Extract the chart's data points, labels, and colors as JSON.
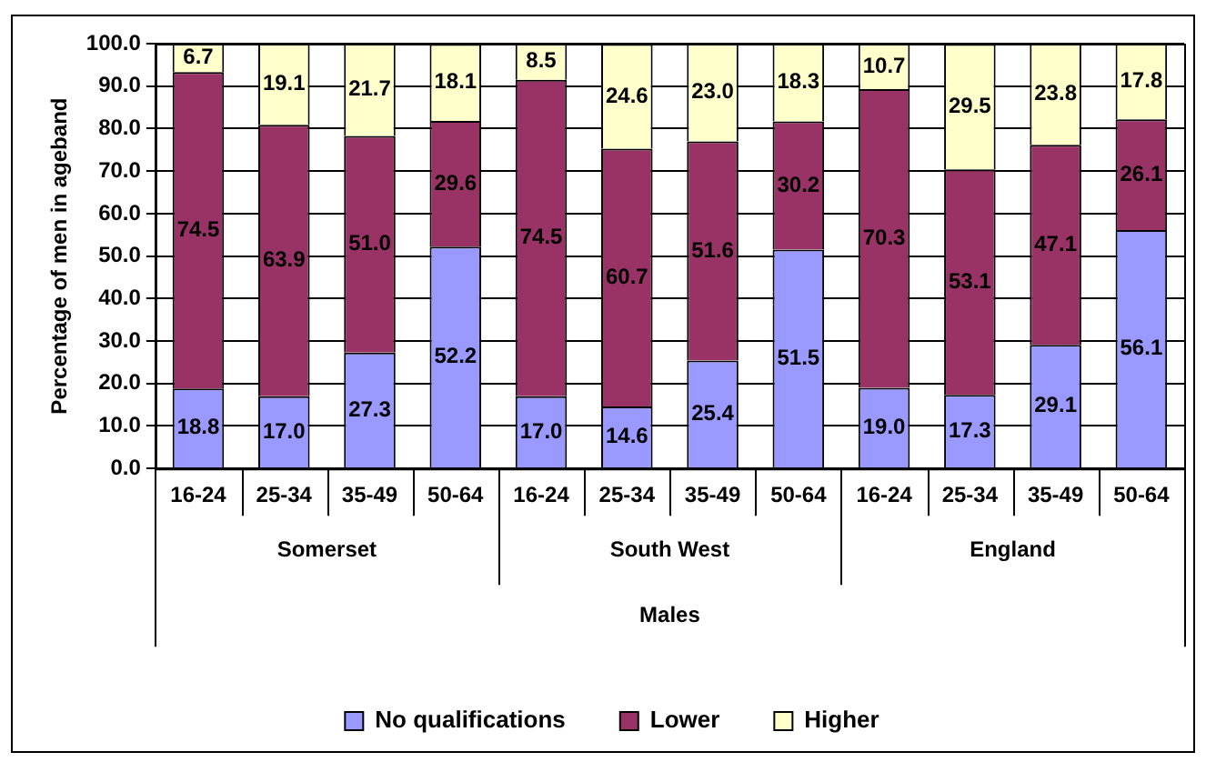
{
  "chart_data": {
    "type": "bar",
    "stacked": true,
    "xlabel": "Males",
    "ylabel": "Percentage of men in ageband",
    "categories": [
      "16-24",
      "25-34",
      "35-49",
      "50-64",
      "16-24",
      "25-34",
      "35-49",
      "50-64",
      "16-24",
      "25-34",
      "35-49",
      "50-64"
    ],
    "annotations": [
      "Somerset",
      "South West",
      "England"
    ],
    "series": [
      {
        "name": "No qualifications",
        "color": "#9999ff",
        "values": [
          18.8,
          17.0,
          27.3,
          52.2,
          17.0,
          14.6,
          25.4,
          51.5,
          19.0,
          17.3,
          29.1,
          56.1
        ],
        "value_labels": [
          "18.8",
          "17.0",
          "27.3",
          "52.2",
          "17.0",
          "14.6",
          "25.4",
          "51.5",
          "19.0",
          "17.3",
          "29.1",
          "56.1"
        ]
      },
      {
        "name": "Lower",
        "color": "#993366",
        "values": [
          74.5,
          63.9,
          51.0,
          29.6,
          74.5,
          60.7,
          51.6,
          30.2,
          70.3,
          53.1,
          47.1,
          26.1
        ],
        "value_labels": [
          "74.5",
          "63.9",
          "51.0",
          "29.6",
          "74.5",
          "60.7",
          "51.6",
          "30.2",
          "70.3",
          "53.1",
          "47.1",
          "26.1"
        ]
      },
      {
        "name": "Higher",
        "color": "#ffffcc",
        "values": [
          6.7,
          19.1,
          21.7,
          18.1,
          8.5,
          24.6,
          23.0,
          18.3,
          10.7,
          29.5,
          23.8,
          17.8
        ],
        "value_labels": [
          "6.7",
          "19.1",
          "21.7",
          "18.1",
          "8.5",
          "24.6",
          "23.0",
          "18.3",
          "10.7",
          "29.5",
          "23.8",
          "17.8"
        ]
      }
    ],
    "ylim": [
      0,
      100
    ],
    "yticks": [
      {
        "value": 0,
        "label": "0.0"
      },
      {
        "value": 10,
        "label": "10.0"
      },
      {
        "value": 20,
        "label": "20.0"
      },
      {
        "value": 30,
        "label": "30.0"
      },
      {
        "value": 40,
        "label": "40.0"
      },
      {
        "value": 50,
        "label": "50.0"
      },
      {
        "value": 60,
        "label": "60.0"
      },
      {
        "value": 70,
        "label": "70.0"
      },
      {
        "value": 80,
        "label": "80.0"
      },
      {
        "value": 90,
        "label": "90.0"
      },
      {
        "value": 100,
        "label": "100.0"
      }
    ],
    "grid": "y",
    "legend": "bottom"
  }
}
